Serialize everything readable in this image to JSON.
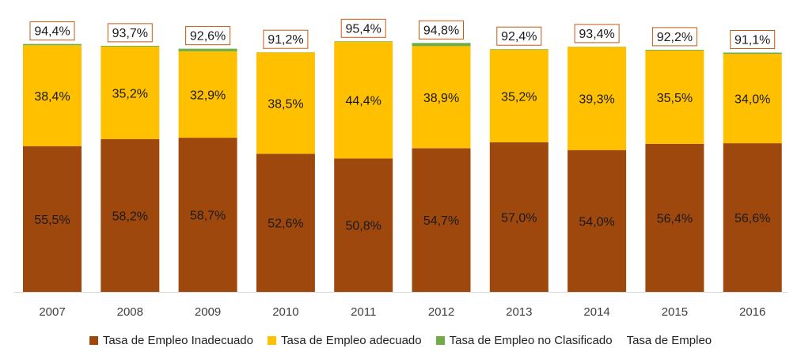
{
  "chart_data": {
    "type": "bar",
    "stacked": true,
    "categories": [
      "2007",
      "2008",
      "2009",
      "2010",
      "2011",
      "2012",
      "2013",
      "2014",
      "2015",
      "2016"
    ],
    "series": [
      {
        "name": "Tasa de Empleo Inadecuado",
        "color": "#9E480E",
        "values": [
          55.5,
          58.2,
          58.7,
          52.6,
          50.8,
          54.7,
          57.0,
          54.0,
          56.4,
          56.6
        ],
        "labels": [
          "55,5%",
          "58,2%",
          "58,7%",
          "52,6%",
          "50,8%",
          "54,7%",
          "57,0%",
          "54,0%",
          "56,4%",
          "56,6%"
        ]
      },
      {
        "name": "Tasa de Empleo adecuado",
        "color": "#FFC000",
        "values": [
          38.4,
          35.2,
          32.9,
          38.5,
          44.4,
          38.9,
          35.2,
          39.3,
          35.5,
          34.0
        ],
        "labels": [
          "38,4%",
          "35,2%",
          "32,9%",
          "38,5%",
          "44,4%",
          "38,9%",
          "35,2%",
          "39,3%",
          "35,5%",
          "34,0%"
        ]
      },
      {
        "name": "Tasa de Empleo no Clasificado",
        "color": "#70AD47",
        "values": [
          0.5,
          0.3,
          1.0,
          0.1,
          0.2,
          1.2,
          0.2,
          0.1,
          0.3,
          0.5
        ]
      }
    ],
    "total": {
      "name": "Tasa de Empleo",
      "values": [
        94.4,
        93.7,
        92.6,
        91.2,
        95.4,
        94.8,
        92.4,
        93.4,
        92.2,
        91.1
      ],
      "labels": [
        "94,4%",
        "93,7%",
        "92,6%",
        "91,2%",
        "95,4%",
        "94,8%",
        "92,4%",
        "93,4%",
        "92,2%",
        "91,1%"
      ],
      "label_border_color": "#C55A11"
    },
    "ylim": [
      0,
      100
    ],
    "grid": false,
    "legend_position": "bottom",
    "title": "",
    "xlabel": "",
    "ylabel": ""
  }
}
